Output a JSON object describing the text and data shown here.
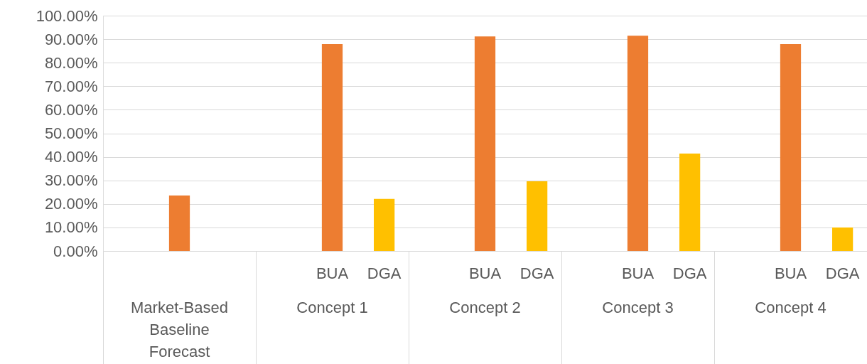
{
  "chart_data": {
    "type": "bar",
    "categories": [
      "Market-Based Baseline Forecast",
      "Concept 1",
      "Concept 2",
      "Concept 3",
      "Concept 4"
    ],
    "series": [
      {
        "color": "#ed7d31",
        "values": [
          23.6,
          null,
          null,
          null,
          null
        ]
      },
      {
        "name": "BUA",
        "color": "#ed7d31",
        "values": [
          null,
          87.9,
          91.2,
          91.5,
          87.9
        ]
      },
      {
        "name": "DGA",
        "color": "#ffc000",
        "values": [
          null,
          22.1,
          29.6,
          41.4,
          10.0
        ]
      }
    ],
    "ylim": [
      0,
      100
    ],
    "yticks": [
      {
        "value": 0,
        "label": "0.00%"
      },
      {
        "value": 10,
        "label": "10.00%"
      },
      {
        "value": 20,
        "label": "20.00%"
      },
      {
        "value": 30,
        "label": "30.00%"
      },
      {
        "value": 40,
        "label": "40.00%"
      },
      {
        "value": 50,
        "label": "50.00%"
      },
      {
        "value": 60,
        "label": "60.00%"
      },
      {
        "value": 70,
        "label": "70.00%"
      },
      {
        "value": 80,
        "label": "80.00%"
      },
      {
        "value": 90,
        "label": "90.00%"
      },
      {
        "value": 100,
        "label": "100.00%"
      }
    ],
    "grid": true
  }
}
